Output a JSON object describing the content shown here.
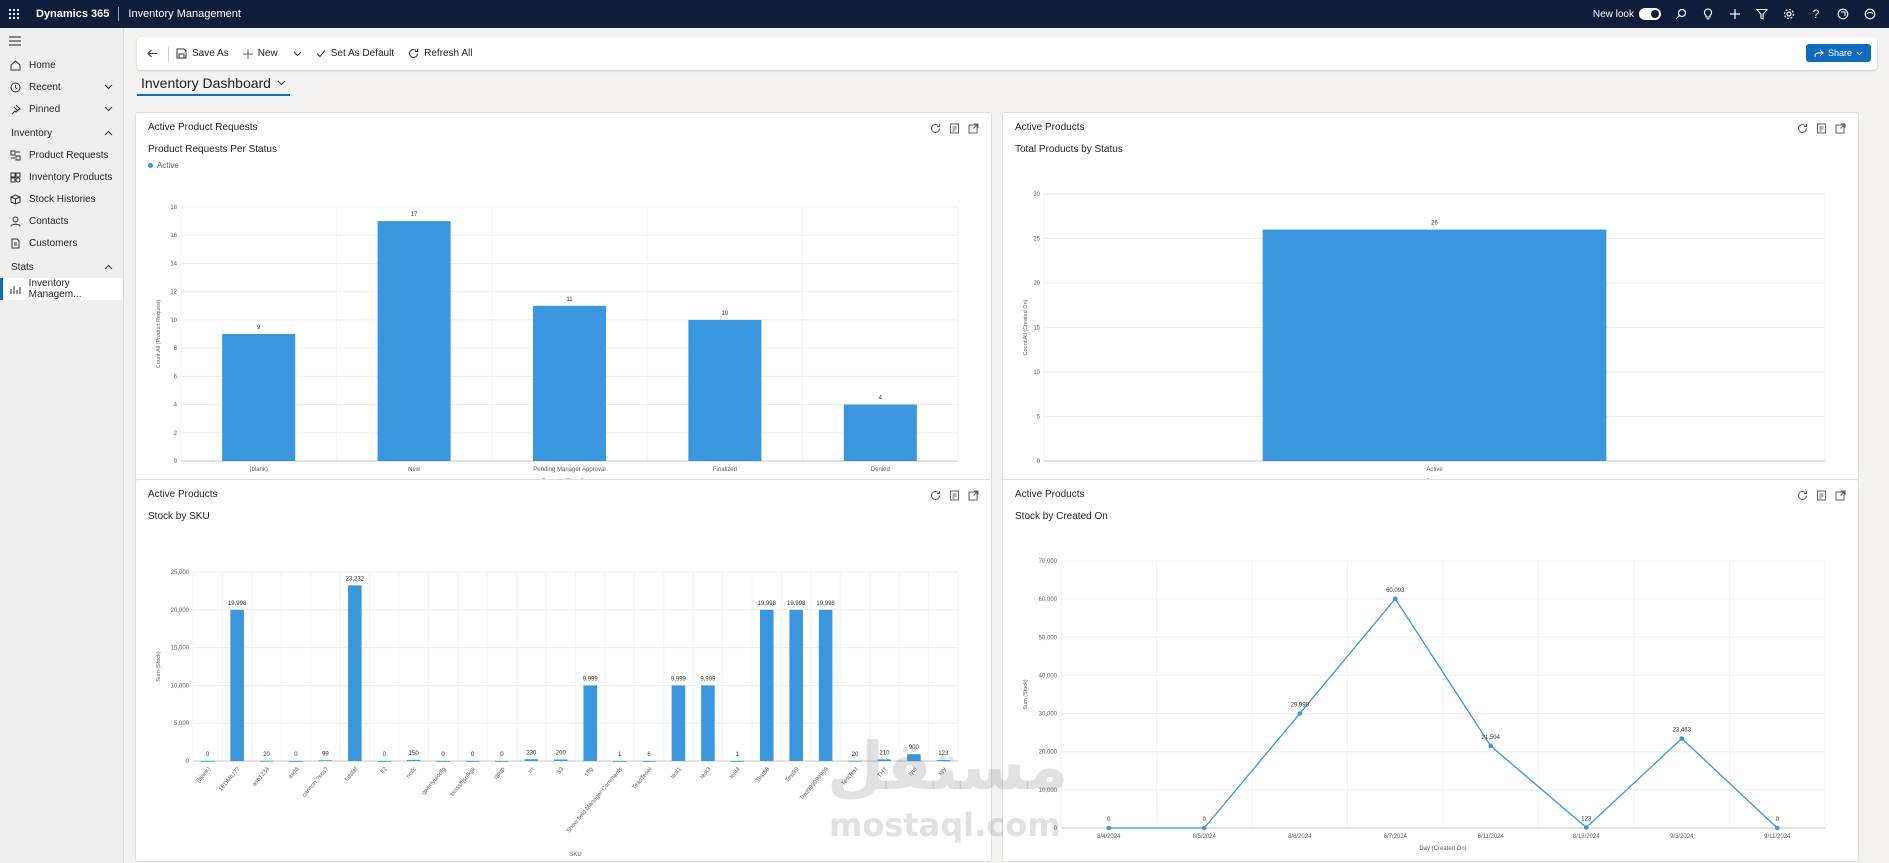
{
  "topbar": {
    "brand": "Dynamics 365",
    "app": "Inventory Management",
    "new_look": "New look"
  },
  "sidebar": {
    "items": [
      {
        "label": "Home",
        "icon": "home-icon"
      },
      {
        "label": "Recent",
        "icon": "clock-icon"
      },
      {
        "label": "Pinned",
        "icon": "pin-icon"
      }
    ],
    "groups": [
      {
        "label": "Inventory",
        "items": [
          {
            "label": "Product Requests",
            "icon": "requests-icon"
          },
          {
            "label": "Inventory Products",
            "icon": "products-icon"
          },
          {
            "label": "Stock Histories",
            "icon": "box-icon"
          },
          {
            "label": "Contacts",
            "icon": "person-icon"
          },
          {
            "label": "Customers",
            "icon": "document-icon"
          }
        ]
      },
      {
        "label": "Stats",
        "items": [
          {
            "label": "Inventory Managem...",
            "icon": "dashboard-icon"
          }
        ]
      }
    ]
  },
  "cmdbar": {
    "save_as": "Save As",
    "new": "New",
    "set_default": "Set As Default",
    "refresh_all": "Refresh All",
    "share": "Share"
  },
  "dashboard": {
    "title": "Inventory Dashboard"
  },
  "panels": [
    {
      "title": "Active Product Requests",
      "subtitle": "Product Requests Per Status",
      "legend": "Active"
    },
    {
      "title": "Active Products",
      "subtitle": "Total Products by Status"
    },
    {
      "title": "Active Products",
      "subtitle": "Stock by SKU"
    },
    {
      "title": "Active Products",
      "subtitle": "Stock by Created On"
    }
  ],
  "colors": {
    "accent": "#0f6cbd",
    "bar": "#3a96dd",
    "topbar": "#0d1d3a"
  },
  "watermark": {
    "arabic": "مستقل",
    "latin": "mostaql.com"
  },
  "chart_data": [
    {
      "type": "bar",
      "categories": [
        "(blank)",
        "New",
        "Pending Manager Approval",
        "Finalized",
        "Denied"
      ],
      "series": [
        {
          "name": "Active",
          "values": [
            9,
            17,
            11,
            10,
            4
          ]
        }
      ],
      "value_labels": [
        "9",
        "17",
        "11",
        "10",
        "4"
      ],
      "xlabel": "Request Flow Status",
      "ylabel": "Count:All (Product Request)",
      "ylim": [
        0,
        18
      ],
      "yticks": [
        "0",
        "2",
        "4",
        "6",
        "8",
        "10",
        "12",
        "14",
        "16",
        "18"
      ],
      "grid": true
    },
    {
      "type": "bar",
      "categories": [
        "Active"
      ],
      "values": [
        26
      ],
      "value_labels": [
        "26"
      ],
      "xlabel": "Status",
      "ylabel": "Count:All (Created On)",
      "ylim": [
        0,
        30
      ],
      "yticks": [
        "0",
        "5",
        "10",
        "15",
        "20",
        "25",
        "30"
      ],
      "grid": true
    },
    {
      "type": "bar",
      "categories": [
        "(blank)",
        "1EDMIU77",
        "asb1234",
        "asdd",
        "cannon ?scs?",
        "fafsfaf",
        "ff2",
        "ncifc",
        "qwertyuiodfg",
        "sssssffjsnfkjjk",
        "qpqp",
        "rrr",
        "S3",
        "sffg",
        "Show field Manager Comments",
        "TeasTeset",
        "test1",
        "test3",
        "test4",
        "Test88",
        "Test89",
        "Test999999999",
        "TestTest",
        "THT",
        "tyui",
        "xyy"
      ],
      "values": [
        0,
        19998,
        20,
        0,
        99,
        23232,
        0,
        150,
        0,
        0,
        0,
        230,
        200,
        9999,
        1,
        6,
        9999,
        9999,
        1,
        19998,
        19998,
        19998,
        20,
        210,
        900,
        123
      ],
      "value_labels": [
        "0",
        "19,998",
        "20",
        "0",
        "99",
        "23,232",
        "0",
        "150",
        "0",
        "0",
        "0",
        "230",
        "200",
        "9,999",
        "1",
        "6",
        "9,999",
        "9,999",
        "1",
        "19,998",
        "19,998",
        "19,998",
        "20",
        "210",
        "900",
        "123"
      ],
      "xlabel": "SKU",
      "ylabel": "Sum (Stock)",
      "ylim": [
        0,
        25000
      ],
      "yticks": [
        "0",
        "5,000",
        "10,000",
        "15,000",
        "20,000",
        "25,000"
      ],
      "grid": true
    },
    {
      "type": "line",
      "categories": [
        "8/4/2024",
        "8/5/2024",
        "8/6/2024",
        "8/7/2024",
        "8/11/2024",
        "8/13/2024",
        "9/3/2024",
        "9/11/2024"
      ],
      "values": [
        0,
        0,
        29998,
        60093,
        21504,
        123,
        23463,
        0
      ],
      "value_labels": [
        "0",
        "0",
        "29,998",
        "60,093",
        "21,504",
        "123",
        "23,463",
        "0"
      ],
      "xlabel": "Day (Created On)",
      "ylabel": "Sum (Stock)",
      "ylim": [
        0,
        70000
      ],
      "yticks": [
        "0",
        "10,000",
        "20,000",
        "30,000",
        "40,000",
        "50,000",
        "60,000",
        "70,000"
      ],
      "grid": true
    }
  ]
}
